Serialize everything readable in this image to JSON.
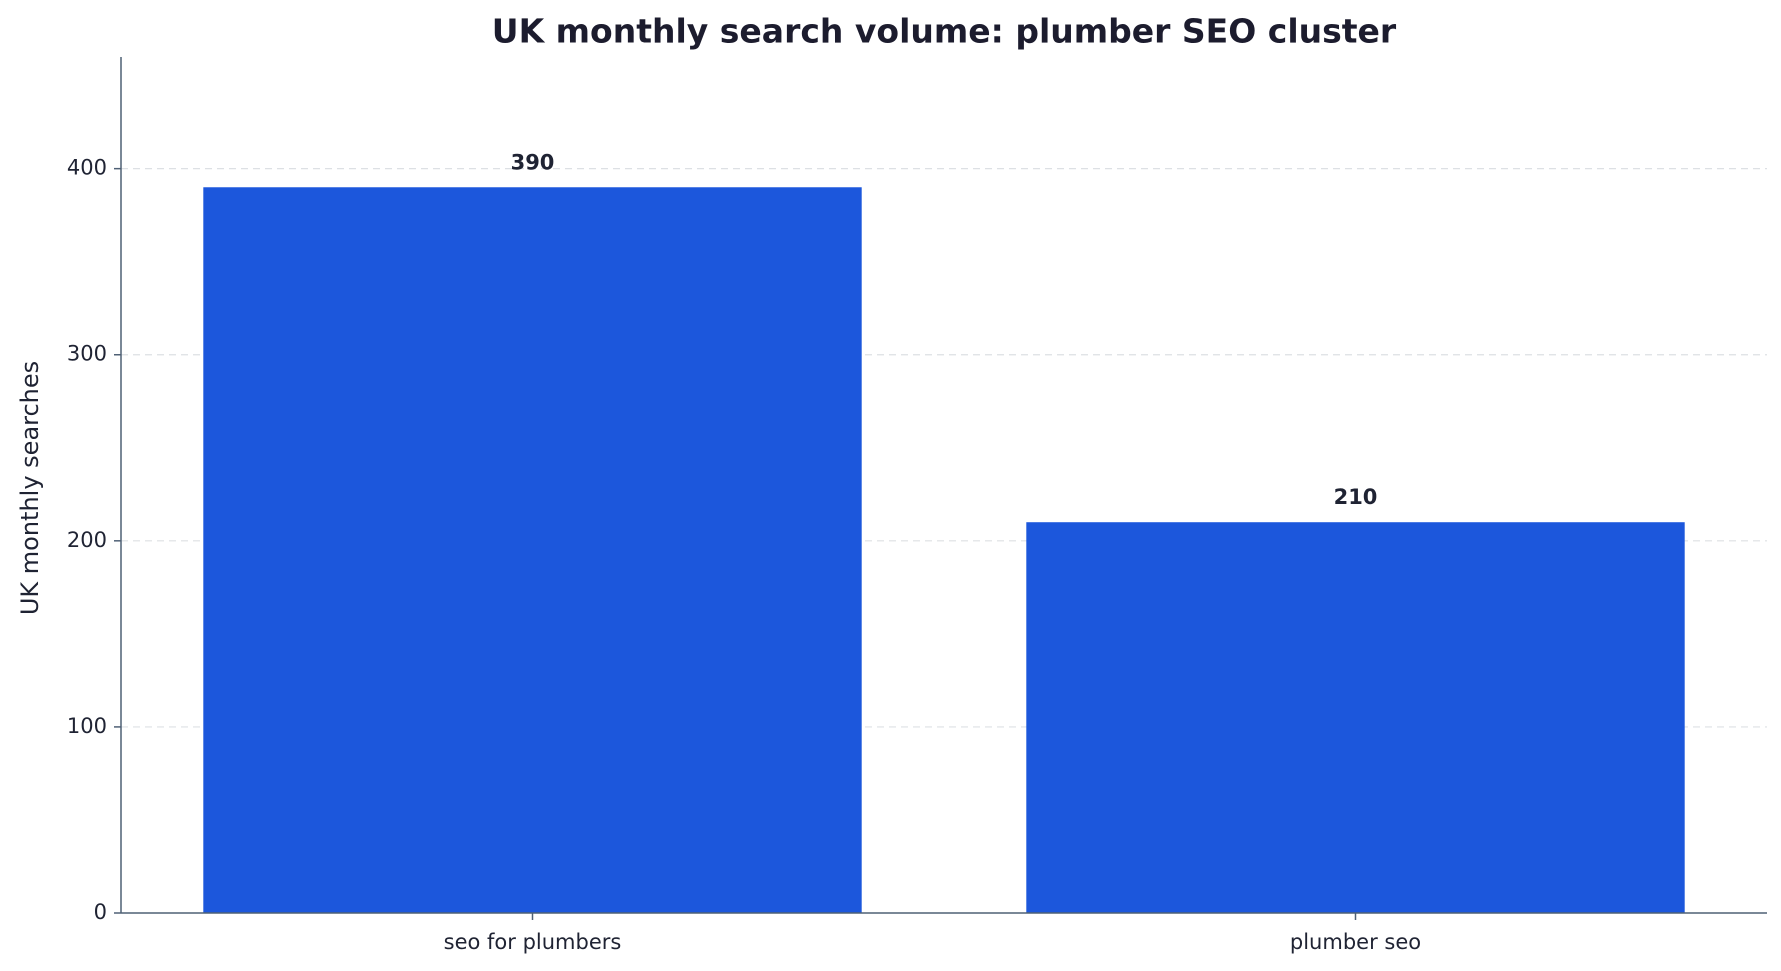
{
  "chart_data": {
    "type": "bar",
    "title": "UK monthly search volume: plumber SEO cluster",
    "y_label": "UK monthly searches",
    "categories": [
      "seo for plumbers",
      "plumber seo"
    ],
    "values": [
      390,
      210
    ],
    "color": "#1c57dc",
    "ylim": [
      0,
      460
    ],
    "yticks": [
      0,
      100,
      200,
      300,
      400
    ],
    "grid": true
  }
}
